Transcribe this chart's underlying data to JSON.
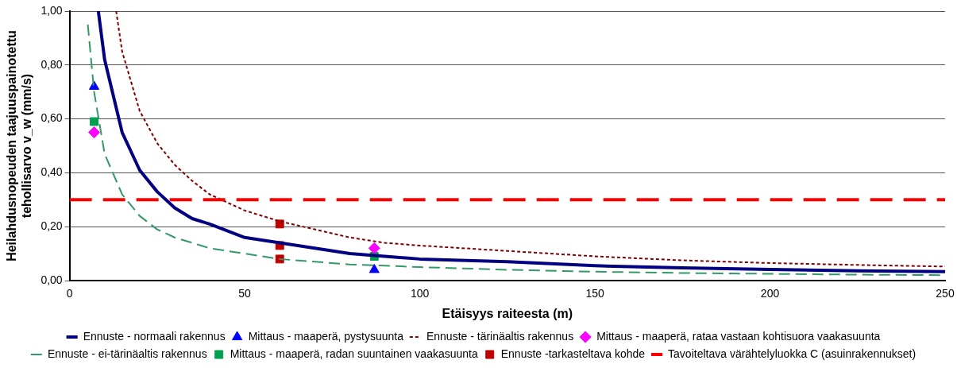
{
  "chart_data": {
    "type": "line",
    "xlabel": "Etäisyys raiteesta (m)",
    "ylabel": "Heilahdusnopeuden taajuuspainotettu\ntehollisarvo v_w (mm/s)",
    "xlim": [
      0,
      250
    ],
    "xticks": [
      0,
      50,
      100,
      150,
      200,
      250
    ],
    "ylim": [
      0,
      1
    ],
    "yticks": [
      {
        "value": 0,
        "label": "0,00"
      },
      {
        "value": 0.2,
        "label": "0,20"
      },
      {
        "value": 0.4,
        "label": "0,40"
      },
      {
        "value": 0.6,
        "label": "0,60"
      },
      {
        "value": 0.8,
        "label": "0,80"
      },
      {
        "value": 1,
        "label": "1,00"
      }
    ],
    "grid": "y",
    "legend": "bottom",
    "series": [
      {
        "name": "Ennuste - normaali rakennus",
        "color": "#000080",
        "line_style": "solid",
        "marker": "none",
        "x": [
          8.2,
          10,
          15,
          20,
          25,
          30,
          35,
          40,
          50,
          60,
          70,
          80,
          90,
          100,
          125,
          150,
          175,
          200,
          225,
          250
        ],
        "values": [
          1.0,
          0.82,
          0.55,
          0.41,
          0.33,
          0.27,
          0.23,
          0.21,
          0.16,
          0.14,
          0.12,
          0.1,
          0.09,
          0.08,
          0.07,
          0.055,
          0.047,
          0.041,
          0.036,
          0.033
        ]
      },
      {
        "name": "Ennuste - tärinäaltis rakennus",
        "color": "#800000",
        "line_style": "dotted",
        "marker": "none",
        "x": [
          13.3,
          15,
          20,
          25,
          30,
          35,
          40,
          50,
          60,
          70,
          80,
          90,
          100,
          125,
          150,
          175,
          200,
          225,
          250
        ],
        "values": [
          1.0,
          0.85,
          0.63,
          0.51,
          0.43,
          0.37,
          0.32,
          0.26,
          0.22,
          0.19,
          0.16,
          0.14,
          0.13,
          0.11,
          0.09,
          0.075,
          0.065,
          0.058,
          0.052
        ]
      },
      {
        "name": "Ennuste - ei-tärinäaltis rakennus",
        "color": "#339966",
        "line_style": "dashed",
        "marker": "none",
        "x": [
          5.2,
          7,
          10,
          15,
          20,
          25,
          30,
          35,
          40,
          50,
          60,
          70,
          80,
          90,
          100,
          125,
          150,
          175,
          200,
          225,
          250
        ],
        "values": [
          0.95,
          0.7,
          0.47,
          0.32,
          0.24,
          0.19,
          0.16,
          0.14,
          0.12,
          0.1,
          0.08,
          0.07,
          0.06,
          0.055,
          0.05,
          0.04,
          0.033,
          0.028,
          0.025,
          0.022,
          0.02
        ]
      },
      {
        "name": "Ennuste -tarkasteltava kohde",
        "type": "scatter",
        "color": "#c00000",
        "marker": "square",
        "x": [
          60,
          60,
          60
        ],
        "values": [
          0.21,
          0.13,
          0.08
        ]
      },
      {
        "name": "Mittaus - maaperä, pystysuunta",
        "type": "scatter",
        "color": "#0000ff",
        "marker": "triangle",
        "x": [
          7,
          87
        ],
        "values": [
          0.72,
          0.04
        ]
      },
      {
        "name": "Mittaus - maaperä, rataa vastaan kohtisuora vaakasuunta",
        "type": "scatter",
        "color": "#ff00ff",
        "marker": "diamond",
        "x": [
          7,
          87
        ],
        "values": [
          0.55,
          0.12
        ]
      },
      {
        "name": "Mittaus - maaperä, radan suuntainen vaakasuunta",
        "type": "scatter",
        "color": "#00a050",
        "marker": "square",
        "x": [
          7,
          87
        ],
        "values": [
          0.59,
          0.09
        ]
      }
    ],
    "ref_lines": [
      {
        "axis": "y",
        "value": 0.3,
        "label": "Tavoiteltava värähtelyluokka C (asuinrakennukset)",
        "color": "#ff0000",
        "line_style": "dashed"
      }
    ]
  }
}
